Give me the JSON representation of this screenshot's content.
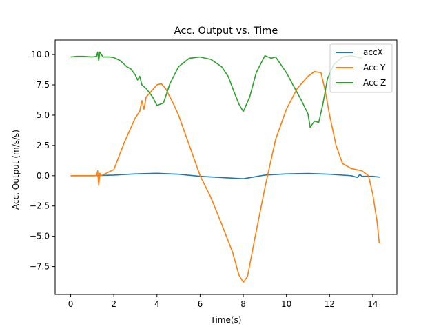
{
  "chart_data": {
    "type": "line",
    "title": "Acc. Output vs. Time",
    "xlabel": "Time(s)",
    "ylabel": "Acc. Output (m/s/s)",
    "xlim": [
      -0.72,
      15.12
    ],
    "ylim": [
      -9.8,
      11.2
    ],
    "xticks": [
      0,
      2,
      4,
      6,
      8,
      10,
      12,
      14
    ],
    "yticks": [
      -7.5,
      -5.0,
      -2.5,
      0.0,
      2.5,
      5.0,
      7.5,
      10.0
    ],
    "xtick_labels": [
      "0",
      "2",
      "4",
      "6",
      "8",
      "10",
      "12",
      "14"
    ],
    "ytick_labels": [
      "−7.5",
      "−5.0",
      "−2.5",
      "0.0",
      "2.5",
      "5.0",
      "7.5",
      "10.0"
    ],
    "legend_position": "top-right",
    "series": [
      {
        "name": "accX",
        "color": "#1f77b4",
        "x": [
          0,
          1,
          2,
          3,
          4,
          5,
          6,
          7,
          8,
          9,
          10,
          11,
          12,
          13,
          13.3,
          13.4,
          13.5,
          14,
          14.35
        ],
        "y": [
          0.0,
          0.0,
          0.05,
          0.15,
          0.2,
          0.12,
          -0.05,
          -0.15,
          -0.25,
          0.05,
          0.15,
          0.18,
          0.12,
          0.0,
          -0.15,
          0.12,
          -0.05,
          -0.05,
          -0.12
        ]
      },
      {
        "name": "Acc Y",
        "color": "#ff7f0e",
        "x": [
          0,
          1.2,
          1.25,
          1.3,
          1.35,
          1.4,
          2,
          2.5,
          3,
          3.2,
          3.3,
          3.4,
          3.5,
          3.7,
          4,
          4.2,
          4.4,
          4.6,
          4.8,
          5,
          5.3,
          5.5,
          6,
          6.5,
          7,
          7.5,
          7.8,
          8,
          8.2,
          8.5,
          9,
          9.5,
          10,
          10.5,
          11,
          11.3,
          11.6,
          11.8,
          12,
          12.3,
          12.6,
          13,
          13.5,
          13.8,
          14,
          14.2,
          14.3,
          14.35
        ],
        "y": [
          0.0,
          0.0,
          0.4,
          -0.8,
          0.2,
          0.0,
          0.5,
          2.8,
          4.8,
          5.3,
          6.2,
          5.5,
          6.5,
          6.9,
          7.5,
          7.6,
          7.2,
          6.5,
          5.8,
          5.0,
          3.5,
          2.5,
          0.0,
          -1.8,
          -4.0,
          -6.3,
          -8.2,
          -8.8,
          -8.3,
          -5.5,
          -1.0,
          3.0,
          5.5,
          7.2,
          8.2,
          8.6,
          8.5,
          7.0,
          5.0,
          2.5,
          1.0,
          0.6,
          0.4,
          0.0,
          -1.5,
          -3.8,
          -5.5,
          -5.6
        ]
      },
      {
        "name": "Acc Z",
        "color": "#2ca02c",
        "x": [
          0,
          0.3,
          0.6,
          1.0,
          1.2,
          1.25,
          1.3,
          1.35,
          1.5,
          1.8,
          2.0,
          2.3,
          2.6,
          2.8,
          3.0,
          3.1,
          3.2,
          3.3,
          3.5,
          3.8,
          4.0,
          4.3,
          4.6,
          5.0,
          5.5,
          6.0,
          6.5,
          7.0,
          7.3,
          7.6,
          7.8,
          8.0,
          8.3,
          8.6,
          9.0,
          9.3,
          9.5,
          10.0,
          10.3,
          10.7,
          11.0,
          11.1,
          11.3,
          11.5,
          11.7,
          11.9,
          12.2,
          12.6,
          13.0,
          13.5
        ],
        "y": [
          9.8,
          9.85,
          9.85,
          9.8,
          9.85,
          10.2,
          9.5,
          10.2,
          9.8,
          9.8,
          9.75,
          9.5,
          9.0,
          8.8,
          8.3,
          7.9,
          8.2,
          7.5,
          7.2,
          6.5,
          5.8,
          6.0,
          7.6,
          9.0,
          9.7,
          9.8,
          9.6,
          9.0,
          8.2,
          6.8,
          5.9,
          5.3,
          6.5,
          8.5,
          9.9,
          9.7,
          9.8,
          8.5,
          7.5,
          6.2,
          5.1,
          4.0,
          4.5,
          4.4,
          6.0,
          8.0,
          9.2,
          9.8,
          9.9,
          9.7
        ]
      }
    ]
  }
}
